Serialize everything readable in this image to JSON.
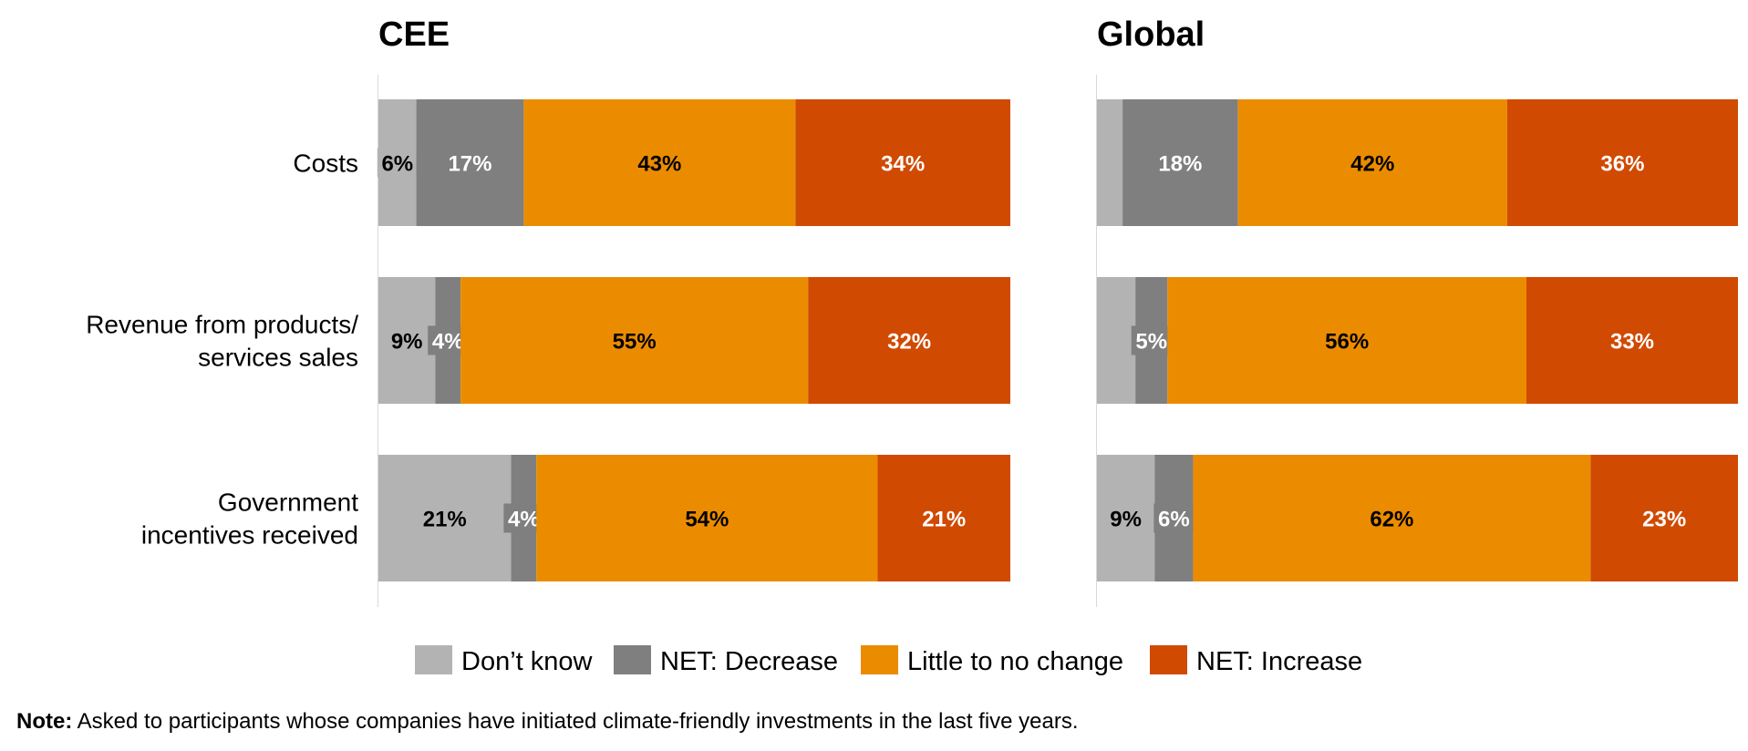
{
  "chart_data": {
    "type": "bar",
    "orientation": "horizontal",
    "stacked": "100%",
    "categories": [
      "Costs",
      "Revenue from products/ services sales",
      "Government incentives received"
    ],
    "category_lines": [
      [
        "Costs"
      ],
      [
        "Revenue from products/",
        "services sales"
      ],
      [
        "Government",
        "incentives received"
      ]
    ],
    "series": [
      {
        "name": "Don’t know",
        "color": "#b3b3b3"
      },
      {
        "name": "NET: Decrease",
        "color": "#7f7f7f"
      },
      {
        "name": "Little to no change",
        "color": "#eb8c00"
      },
      {
        "name": "NET: Increase",
        "color": "#d04a02"
      }
    ],
    "panels": [
      {
        "title": "CEE",
        "values": [
          [
            6,
            17,
            43,
            34
          ],
          [
            9,
            4,
            55,
            32
          ],
          [
            21,
            4,
            54,
            21
          ]
        ],
        "labels": [
          [
            "6%",
            "17%",
            "43%",
            "34%"
          ],
          [
            "9%",
            "4%",
            "55%",
            "32%"
          ],
          [
            "21%",
            "4%",
            "54%",
            "21%"
          ]
        ]
      },
      {
        "title": "Global",
        "values": [
          [
            4,
            18,
            42,
            36
          ],
          [
            6,
            5,
            56,
            33
          ],
          [
            9,
            6,
            62,
            23
          ]
        ],
        "labels": [
          [
            "",
            "18%",
            "42%",
            "36%"
          ],
          [
            "",
            "5%",
            "56%",
            "33%"
          ],
          [
            "9%",
            "6%",
            "62%",
            "23%"
          ]
        ]
      }
    ],
    "xlim": [
      0,
      100
    ],
    "legend_position": "bottom",
    "grid": false
  },
  "note": {
    "label": "Note:",
    "text": " Asked to participants whose companies have initiated climate-friendly investments in the last five years."
  }
}
